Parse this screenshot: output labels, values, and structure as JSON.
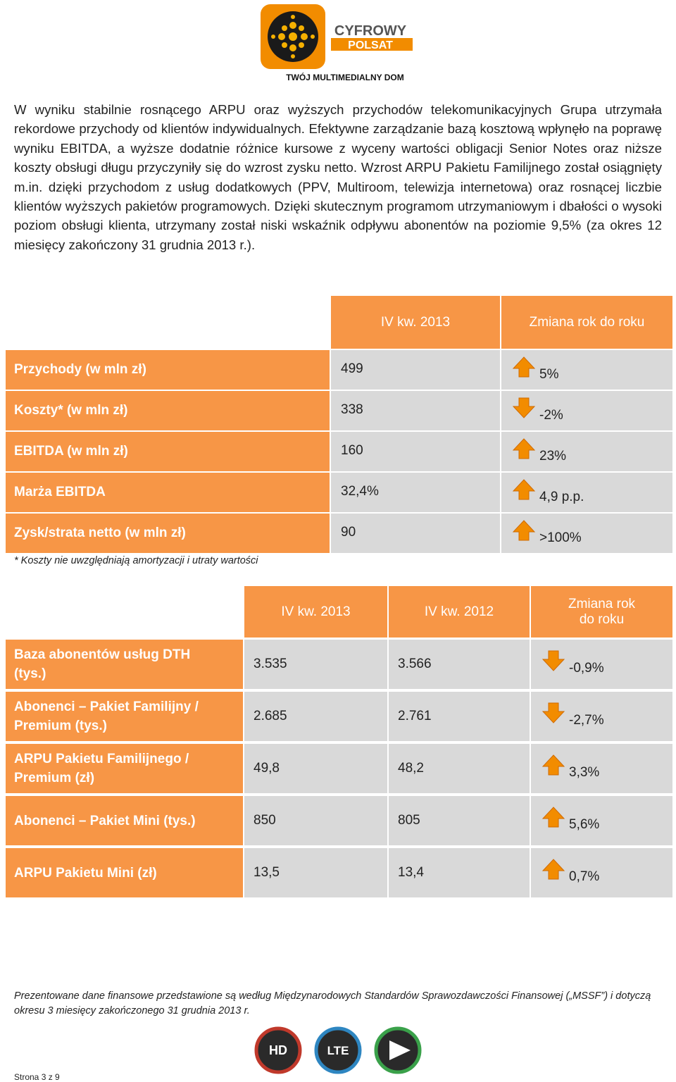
{
  "logo": {
    "brand_line1": "CYFROWY",
    "brand_line2": "POLSAT",
    "tagline": "TWÓJ MULTIMEDIALNY DOM"
  },
  "paragraph": "W wyniku stabilnie rosnącego ARPU oraz wyższych przychodów telekomunikacyjnych Grupa utrzymała rekordowe przychody od klientów indywidualnych. Efektywne zarządzanie bazą kosztową wpłynęło na poprawę wyniku EBITDA, a wyższe dodatnie różnice kursowe z wyceny wartości obligacji Senior Notes oraz niższe koszty obsługi długu przyczyniły się do wzrost zysku netto. Wzrost ARPU Pakietu Familijnego został osiągnięty m.in. dzięki przychodom z usług dodatkowych (PPV, Multiroom, telewizja internetowa) oraz rosnącej liczbie klientów wyższych pakietów programowych. Dzięki skutecznym programom utrzymaniowym i dbałości o wysoki poziom obsługi klienta, utrzymany został niski wskaźnik odpływu abonentów na poziomie 9,5% (za okres 12 miesięcy zakończony 31 grudnia 2013 r.).",
  "table1": {
    "header": [
      "IV kw. 2013",
      "Zmiana rok do roku"
    ],
    "rows": [
      [
        "Przychody (w mln zł)",
        "499",
        "5%"
      ],
      [
        "Koszty* (w mln zł)",
        "338",
        "-2%"
      ],
      [
        "EBITDA (w mln zł)",
        "160",
        "23%"
      ],
      [
        "Marża EBITDA",
        "32,4%",
        "4,9 p.p."
      ],
      [
        "Zysk/strata netto (w mln zł)",
        "90",
        ">100%"
      ]
    ]
  },
  "footnote": "* Koszty nie uwzględniają amortyzacji i utraty wartości",
  "table2": {
    "header": [
      "IV kw. 2013",
      "IV kw. 2012",
      "Zmiana rok do roku"
    ],
    "rows": [
      [
        "Baza abonentów usług DTH (tys.)",
        "3.535",
        "3.566",
        "-0,9%"
      ],
      [
        "Abonenci – Pakiet Familijny / Premium (tys.)",
        "2.685",
        "2.761",
        "-2,7%"
      ],
      [
        "ARPU Pakietu Familijnego / Premium (zł)",
        "49,8",
        "48,2",
        "3,3%"
      ],
      [
        "Abonenci – Pakiet Mini (tys.)",
        "850",
        "805",
        "5,6%"
      ],
      [
        "ARPU Pakietu Mini (zł)",
        "13,5",
        "13,4",
        "0,7%"
      ]
    ]
  },
  "footer_note": "Prezentowane dane finansowe przedstawione są według Międzynarodowych Standardów Sprawozdawczości Finansowej („MSSF”) i dotyczą okresu 3 miesięcy zakończonego 31 grudnia 2013 r.",
  "icons": [
    "HD",
    "LTE"
  ],
  "page_number": "Strona 3 z 9"
}
